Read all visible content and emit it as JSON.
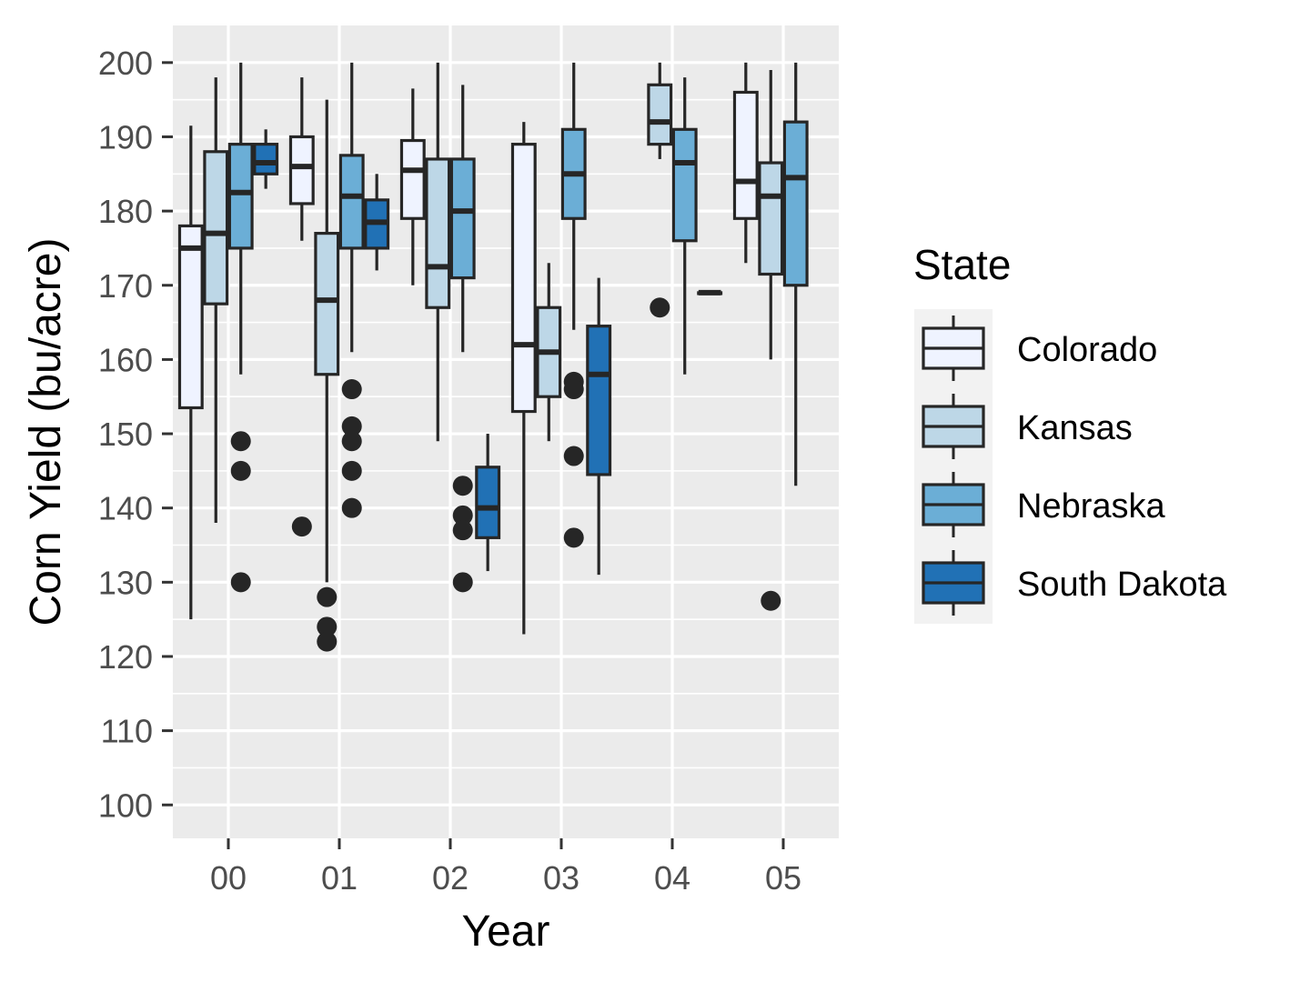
{
  "chart_data": {
    "type": "boxplot",
    "xlabel": "Year",
    "ylabel": "Corn Yield (bu/acre)",
    "ylim": [
      95.5,
      205
    ],
    "y_ticks": [
      100,
      110,
      120,
      130,
      140,
      150,
      160,
      170,
      180,
      190,
      200
    ],
    "categories": [
      "00",
      "01",
      "02",
      "03",
      "04",
      "05"
    ],
    "grid": true,
    "legend": {
      "title": "State",
      "position": "right",
      "entries": [
        "Colorado",
        "Kansas",
        "Nebraska",
        "South Dakota"
      ]
    },
    "series": [
      {
        "name": "Colorado",
        "color": "#eff3ff",
        "boxes": [
          {
            "category": "00",
            "whisker_low": 125,
            "q1": 153.5,
            "median": 175,
            "q3": 178,
            "whisker_high": 191.5,
            "outliers": []
          },
          {
            "category": "01",
            "whisker_low": 176,
            "q1": 181,
            "median": 186,
            "q3": 190,
            "whisker_high": 198,
            "outliers": [
              137.5
            ]
          },
          {
            "category": "02",
            "whisker_low": 170,
            "q1": 179,
            "median": 185.5,
            "q3": 189.5,
            "whisker_high": 196.5,
            "outliers": []
          },
          {
            "category": "03",
            "whisker_low": 123,
            "q1": 153,
            "median": 162,
            "q3": 189,
            "whisker_high": 192,
            "outliers": []
          },
          {
            "category": "05",
            "whisker_low": 173,
            "q1": 179,
            "median": 184,
            "q3": 196,
            "whisker_high": 200,
            "outliers": []
          }
        ]
      },
      {
        "name": "Kansas",
        "color": "#bdd7e7",
        "boxes": [
          {
            "category": "00",
            "whisker_low": 138,
            "q1": 167.5,
            "median": 177,
            "q3": 188,
            "whisker_high": 198,
            "outliers": []
          },
          {
            "category": "01",
            "whisker_low": 130,
            "q1": 158,
            "median": 168,
            "q3": 177,
            "whisker_high": 195,
            "outliers": [
              128,
              124,
              122
            ]
          },
          {
            "category": "02",
            "whisker_low": 149,
            "q1": 167,
            "median": 172.5,
            "q3": 187,
            "whisker_high": 200,
            "outliers": []
          },
          {
            "category": "03",
            "whisker_low": 149,
            "q1": 155,
            "median": 161,
            "q3": 167,
            "whisker_high": 173,
            "outliers": []
          },
          {
            "category": "04",
            "whisker_low": 187,
            "q1": 189,
            "median": 192,
            "q3": 197,
            "whisker_high": 200,
            "outliers": [
              167
            ]
          },
          {
            "category": "05",
            "whisker_low": 160,
            "q1": 171.5,
            "median": 182,
            "q3": 186.5,
            "whisker_high": 199,
            "outliers": [
              127.5
            ]
          }
        ]
      },
      {
        "name": "Nebraska",
        "color": "#6baed6",
        "boxes": [
          {
            "category": "00",
            "whisker_low": 158,
            "q1": 175,
            "median": 182.5,
            "q3": 189,
            "whisker_high": 200,
            "outliers": [
              149,
              145,
              130
            ]
          },
          {
            "category": "01",
            "whisker_low": 161,
            "q1": 175,
            "median": 182,
            "q3": 187.5,
            "whisker_high": 200,
            "outliers": [
              156,
              151,
              149,
              145,
              140
            ]
          },
          {
            "category": "02",
            "whisker_low": 161,
            "q1": 171,
            "median": 180,
            "q3": 187,
            "whisker_high": 197,
            "outliers": [
              143,
              139,
              137,
              130
            ]
          },
          {
            "category": "03",
            "whisker_low": 164,
            "q1": 179,
            "median": 185,
            "q3": 191,
            "whisker_high": 200,
            "outliers": [
              157,
              156,
              147,
              136
            ]
          },
          {
            "category": "04",
            "whisker_low": 158,
            "q1": 176,
            "median": 186.5,
            "q3": 191,
            "whisker_high": 198,
            "outliers": []
          },
          {
            "category": "05",
            "whisker_low": 143,
            "q1": 170,
            "median": 184.5,
            "q3": 192,
            "whisker_high": 200,
            "outliers": []
          }
        ]
      },
      {
        "name": "South Dakota",
        "color": "#2171b5",
        "boxes": [
          {
            "category": "00",
            "whisker_low": 183,
            "q1": 185,
            "median": 186.5,
            "q3": 189,
            "whisker_high": 191,
            "outliers": []
          },
          {
            "category": "01",
            "whisker_low": 172,
            "q1": 175,
            "median": 178.5,
            "q3": 181.5,
            "whisker_high": 185,
            "outliers": []
          },
          {
            "category": "02",
            "whisker_low": 131.5,
            "q1": 136,
            "median": 140,
            "q3": 145.5,
            "whisker_high": 150,
            "outliers": []
          },
          {
            "category": "03",
            "whisker_low": 131,
            "q1": 144.5,
            "median": 158,
            "q3": 164.5,
            "whisker_high": 171,
            "outliers": []
          },
          {
            "category": "04",
            "whisker_low": 169,
            "q1": 169,
            "median": 169,
            "q3": 169,
            "whisker_high": 169,
            "outliers": []
          }
        ]
      }
    ]
  }
}
